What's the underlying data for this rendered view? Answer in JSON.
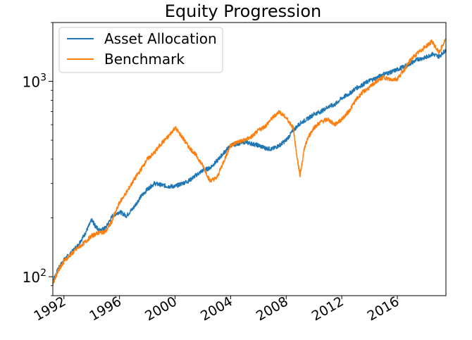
{
  "chart_data": {
    "type": "line",
    "title": "Equity Progression",
    "xlabel": "",
    "ylabel": "",
    "y_scale": "log",
    "xlim": [
      1991.2,
      2019.5
    ],
    "ylim": [
      80,
      2000
    ],
    "x_ticks": [
      {
        "value": 1992,
        "label": "1992"
      },
      {
        "value": 1996,
        "label": "1996"
      },
      {
        "value": 2000,
        "label": "2000"
      },
      {
        "value": 2004,
        "label": "2004"
      },
      {
        "value": 2008,
        "label": "2008"
      },
      {
        "value": 2012,
        "label": "2012"
      },
      {
        "value": 2016,
        "label": "2016"
      }
    ],
    "y_ticks": [
      {
        "value": 100,
        "label": "10",
        "exp": "2"
      },
      {
        "value": 1000,
        "label": "10",
        "exp": "3"
      }
    ],
    "grid": false,
    "legend_position": "top-left",
    "series": [
      {
        "name": "Asset Allocation",
        "color": "#1f77b4",
        "x": [
          1991.2,
          1991.6,
          1992.0,
          1992.5,
          1993.0,
          1993.5,
          1994.0,
          1994.3,
          1994.6,
          1995.0,
          1995.5,
          1996.0,
          1996.5,
          1997.0,
          1997.5,
          1998.0,
          1998.5,
          1999.0,
          1999.5,
          2000.0,
          2000.5,
          2001.0,
          2001.5,
          2002.0,
          2002.5,
          2003.0,
          2003.5,
          2004.0,
          2004.5,
          2005.0,
          2005.5,
          2006.0,
          2006.5,
          2007.0,
          2007.5,
          2008.0,
          2008.5,
          2009.0,
          2009.5,
          2010.0,
          2010.5,
          2011.0,
          2011.5,
          2012.0,
          2012.5,
          2013.0,
          2013.5,
          2014.0,
          2014.5,
          2015.0,
          2015.5,
          2016.0,
          2016.5,
          2017.0,
          2017.5,
          2018.0,
          2018.5,
          2019.0,
          2019.5
        ],
        "values": [
          95,
          110,
          122,
          132,
          145,
          165,
          195,
          180,
          172,
          178,
          205,
          215,
          205,
          225,
          255,
          280,
          300,
          295,
          290,
          290,
          300,
          310,
          330,
          350,
          360,
          390,
          430,
          470,
          480,
          490,
          480,
          470,
          455,
          450,
          470,
          500,
          560,
          610,
          640,
          680,
          700,
          740,
          760,
          820,
          860,
          920,
          960,
          1010,
          1040,
          1090,
          1110,
          1150,
          1190,
          1240,
          1300,
          1320,
          1380,
          1340,
          1450
        ]
      },
      {
        "name": "Benchmark",
        "color": "#ff7f0e",
        "x": [
          1991.2,
          1991.6,
          1992.0,
          1992.5,
          1993.0,
          1993.5,
          1994.0,
          1994.5,
          1995.0,
          1995.5,
          1996.0,
          1996.5,
          1997.0,
          1997.5,
          1998.0,
          1998.5,
          1999.0,
          1999.5,
          2000.0,
          2000.5,
          2001.0,
          2001.5,
          2002.0,
          2002.5,
          2003.0,
          2003.5,
          2004.0,
          2004.5,
          2005.0,
          2005.5,
          2006.0,
          2006.5,
          2007.0,
          2007.5,
          2008.0,
          2008.5,
          2008.8,
          2009.0,
          2009.3,
          2009.6,
          2010.0,
          2010.5,
          2011.0,
          2011.5,
          2012.0,
          2012.5,
          2013.0,
          2013.5,
          2014.0,
          2014.5,
          2015.0,
          2015.5,
          2016.0,
          2016.5,
          2017.0,
          2017.5,
          2018.0,
          2018.5,
          2019.0,
          2019.5
        ],
        "values": [
          92,
          108,
          120,
          130,
          140,
          150,
          162,
          168,
          170,
          195,
          240,
          270,
          310,
          350,
          400,
          430,
          480,
          520,
          580,
          520,
          460,
          420,
          370,
          310,
          320,
          390,
          470,
          490,
          500,
          520,
          560,
          590,
          650,
          700,
          650,
          580,
          400,
          330,
          450,
          520,
          580,
          620,
          640,
          600,
          640,
          700,
          800,
          880,
          930,
          1000,
          1050,
          1020,
          1030,
          1150,
          1300,
          1400,
          1500,
          1600,
          1400,
          1650
        ]
      }
    ]
  }
}
